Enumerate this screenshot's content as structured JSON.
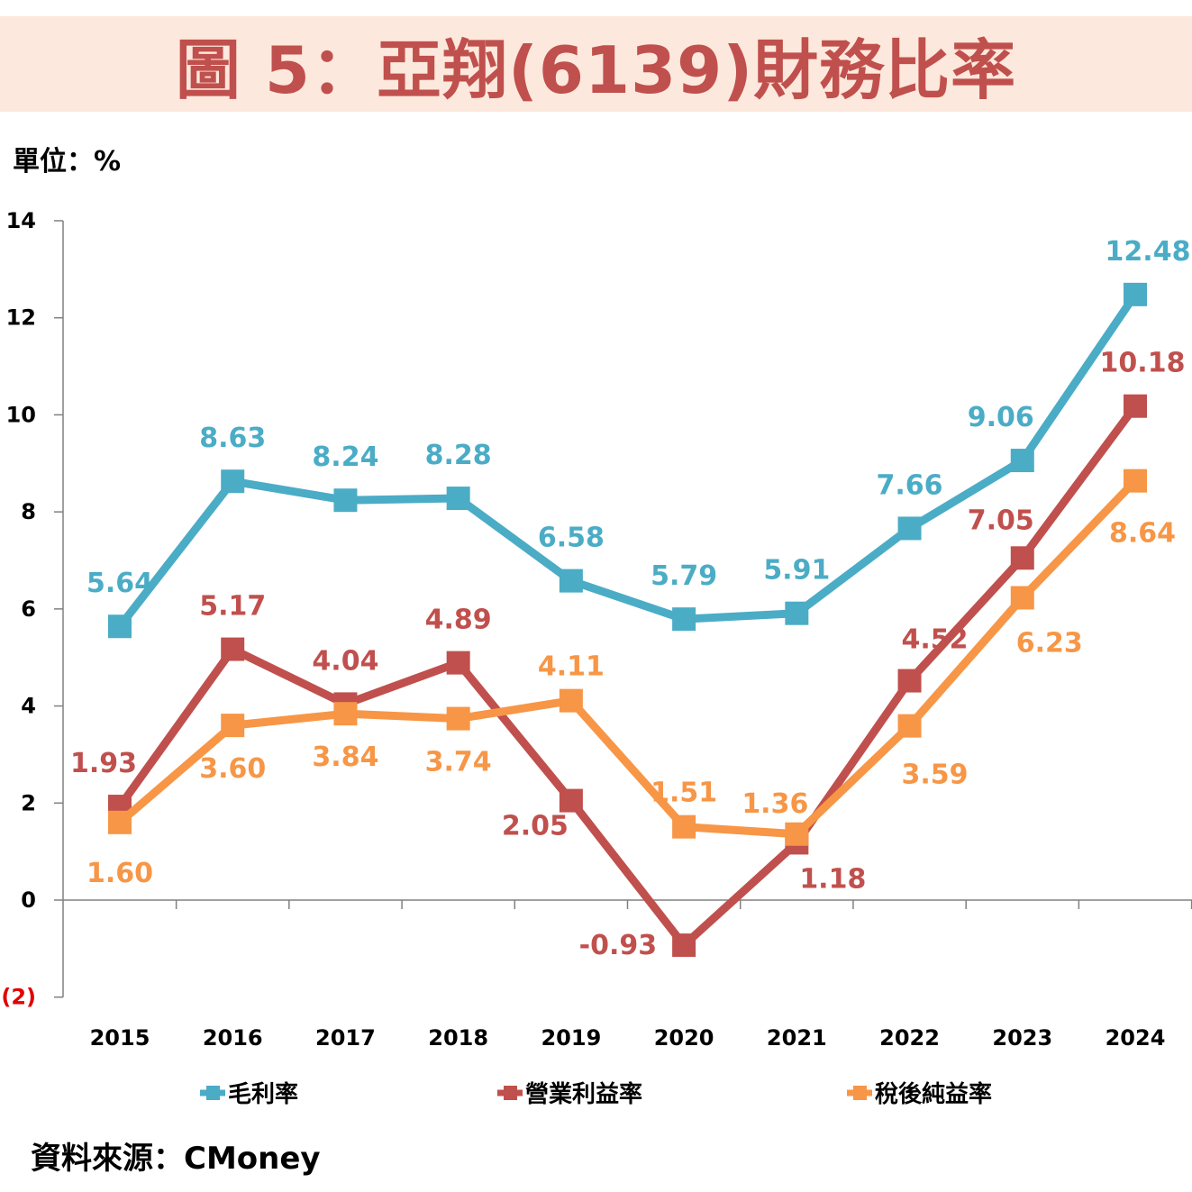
{
  "header": {
    "title": "圖 5：亞翔(6139)財務比率",
    "unit": "單位：%"
  },
  "footer": {
    "source": "資料來源：CMoney"
  },
  "chart_data": {
    "type": "line",
    "title": "圖 5：亞翔(6139)財務比率",
    "xlabel": "",
    "ylabel": "單位：%",
    "categories": [
      "2015",
      "2016",
      "2017",
      "2018",
      "2019",
      "2020",
      "2021",
      "2022",
      "2023",
      "2024"
    ],
    "ylim": [
      -2,
      14
    ],
    "yticks": [
      14,
      12,
      10,
      8,
      6,
      4,
      2,
      0,
      -2
    ],
    "ytick_labels": [
      "14",
      "12",
      "10",
      "8",
      "6",
      "4",
      "2",
      "0",
      "(2)"
    ],
    "ytick_colors": [
      "#000000",
      "#000000",
      "#000000",
      "#000000",
      "#000000",
      "#000000",
      "#000000",
      "#000000",
      "#e00000"
    ],
    "grid": false,
    "legend_position": "bottom",
    "series": [
      {
        "name": "毛利率",
        "color": "#4bacc6",
        "values": [
          5.64,
          8.63,
          8.24,
          8.28,
          6.58,
          5.79,
          5.91,
          7.66,
          9.06,
          12.48
        ],
        "labels": [
          "5.64",
          "8.63",
          "8.24",
          "8.28",
          "6.58",
          "5.79",
          "5.91",
          "7.66",
          "9.06",
          "12.48"
        ],
        "label_pos": [
          "above",
          "above",
          "above",
          "above",
          "above",
          "above",
          "above",
          "above",
          "above",
          "above"
        ]
      },
      {
        "name": "營業利益率",
        "color": "#c0504d",
        "values": [
          1.93,
          5.17,
          4.04,
          4.89,
          2.05,
          -0.93,
          1.18,
          4.52,
          7.05,
          10.18
        ],
        "labels": [
          "1.93",
          "5.17",
          "4.04",
          "4.89",
          "2.05",
          "-0.93",
          "1.18",
          "4.52",
          "7.05",
          "10.18"
        ],
        "label_pos": [
          "above",
          "above",
          "above",
          "above",
          "below-left",
          "left",
          "below-right",
          "above",
          "above",
          "above"
        ]
      },
      {
        "name": "稅後純益率",
        "color": "#f79646",
        "values": [
          1.6,
          3.6,
          3.84,
          3.74,
          4.11,
          1.51,
          1.36,
          3.59,
          6.23,
          8.64
        ],
        "labels": [
          "1.60",
          "3.60",
          "3.84",
          "3.74",
          "4.11",
          "1.51",
          "1.36",
          "3.59",
          "6.23",
          "8.64"
        ],
        "label_pos": [
          "below",
          "below",
          "below",
          "below",
          "above",
          "above",
          "above",
          "below",
          "below",
          "below"
        ]
      }
    ]
  }
}
